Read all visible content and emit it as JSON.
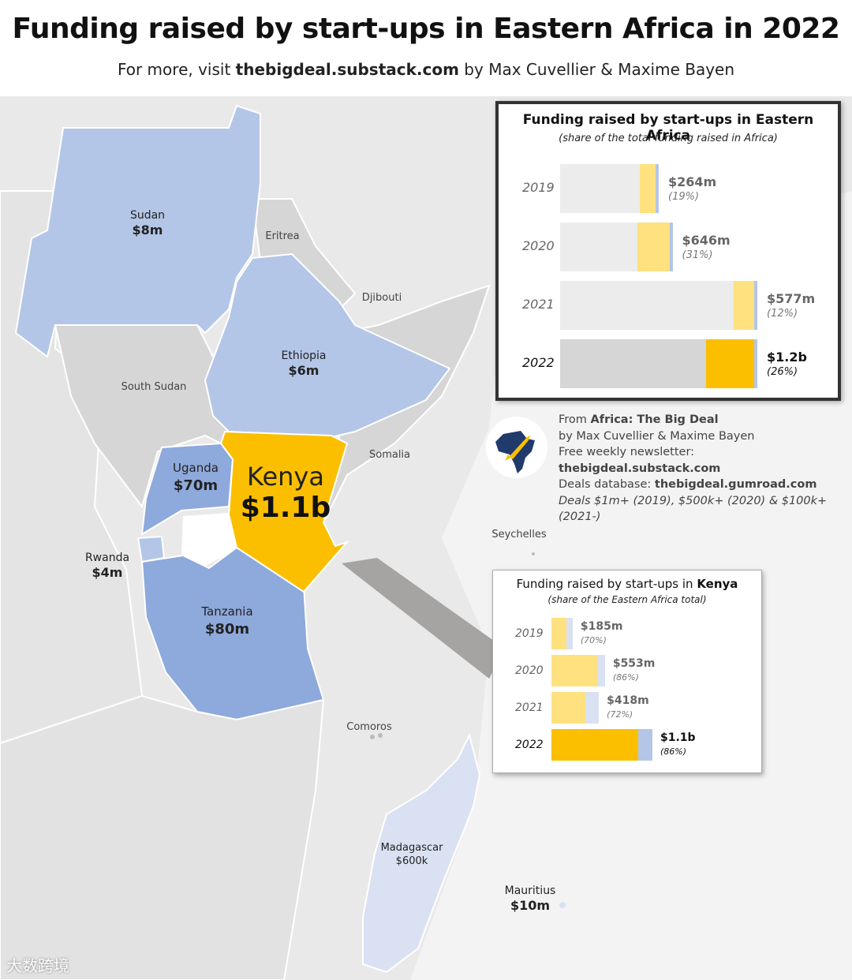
{
  "title": "Funding raised by start-ups in Eastern Africa in 2022",
  "subtitle_pre": "For more, visit ",
  "subtitle_link": "thebigdeal.substack.com",
  "subtitle_post": " by Max Cuvellier & Maxime Bayen",
  "countries": [
    {
      "name": "Sudan",
      "value": "$8m"
    },
    {
      "name": "Ethiopia",
      "value": "$6m"
    },
    {
      "name": "Uganda",
      "value": "$70m"
    },
    {
      "name": "Kenya",
      "value": "$1.1b"
    },
    {
      "name": "Rwanda",
      "value": "$4m"
    },
    {
      "name": "Tanzania",
      "value": "$80m"
    },
    {
      "name": "Madagascar",
      "value": "$600k"
    },
    {
      "name": "Mauritius",
      "value": "$10m"
    }
  ],
  "other_labels": [
    "Eritrea",
    "Djibouti",
    "South Sudan",
    "Somalia",
    "Seychelles",
    "Comoros"
  ],
  "colors": {
    "kenya": "#fbbf00",
    "light_blue": "#b4c6e7",
    "mid_blue": "#8ea9db",
    "pale_blue": "#d9e1f2",
    "light_yellow": "#ffe17f",
    "grey_land": "#d6d6d6",
    "grey_bar": "#ececec"
  },
  "box1": {
    "title": "Funding raised by start-ups in Eastern Africa",
    "subtitle": "(share of the total funding raised in Africa)",
    "rows": [
      {
        "year": "2019",
        "amount": "$264m",
        "share": "(19%)",
        "total": 0.5,
        "east": 0.19
      },
      {
        "year": "2020",
        "amount": "$646m",
        "share": "(31%)",
        "total": 0.57,
        "east": 0.31
      },
      {
        "year": "2021",
        "amount": "$577m",
        "share": "(12%)",
        "total": 1.0,
        "east": 0.12
      },
      {
        "year": "2022",
        "amount": "$1.2b",
        "share": "(26%)",
        "total": 1.0,
        "east": 0.26
      }
    ]
  },
  "box2": {
    "title_pre": "Funding raised by start-ups in ",
    "title_bold": "Kenya",
    "subtitle": "(share of the Eastern Africa total)",
    "rows": [
      {
        "year": "2019",
        "amount": "$185m",
        "share": "(70%)",
        "total": 0.21,
        "kenya": 0.7
      },
      {
        "year": "2020",
        "amount": "$553m",
        "share": "(86%)",
        "total": 0.53,
        "kenya": 0.86
      },
      {
        "year": "2021",
        "amount": "$418m",
        "share": "(72%)",
        "total": 0.47,
        "kenya": 0.72
      },
      {
        "year": "2022",
        "amount": "$1.1b",
        "share": "(86%)",
        "total": 1.0,
        "kenya": 0.86
      }
    ]
  },
  "source": {
    "line1_pre": "From ",
    "line1_bold": "Africa: The Big Deal",
    "line2": "by Max Cuvellier & Maxime Bayen",
    "line3_pre": "Free weekly newsletter: ",
    "line3_bold": "thebigdeal.substack.com",
    "line4_pre": "Deals database: ",
    "line4_bold": "thebigdeal.gumroad.com",
    "line5": "Deals $1m+ (2019), $500k+ (2020) & $100k+ (2021-)"
  },
  "watermark": "大数跨境"
}
